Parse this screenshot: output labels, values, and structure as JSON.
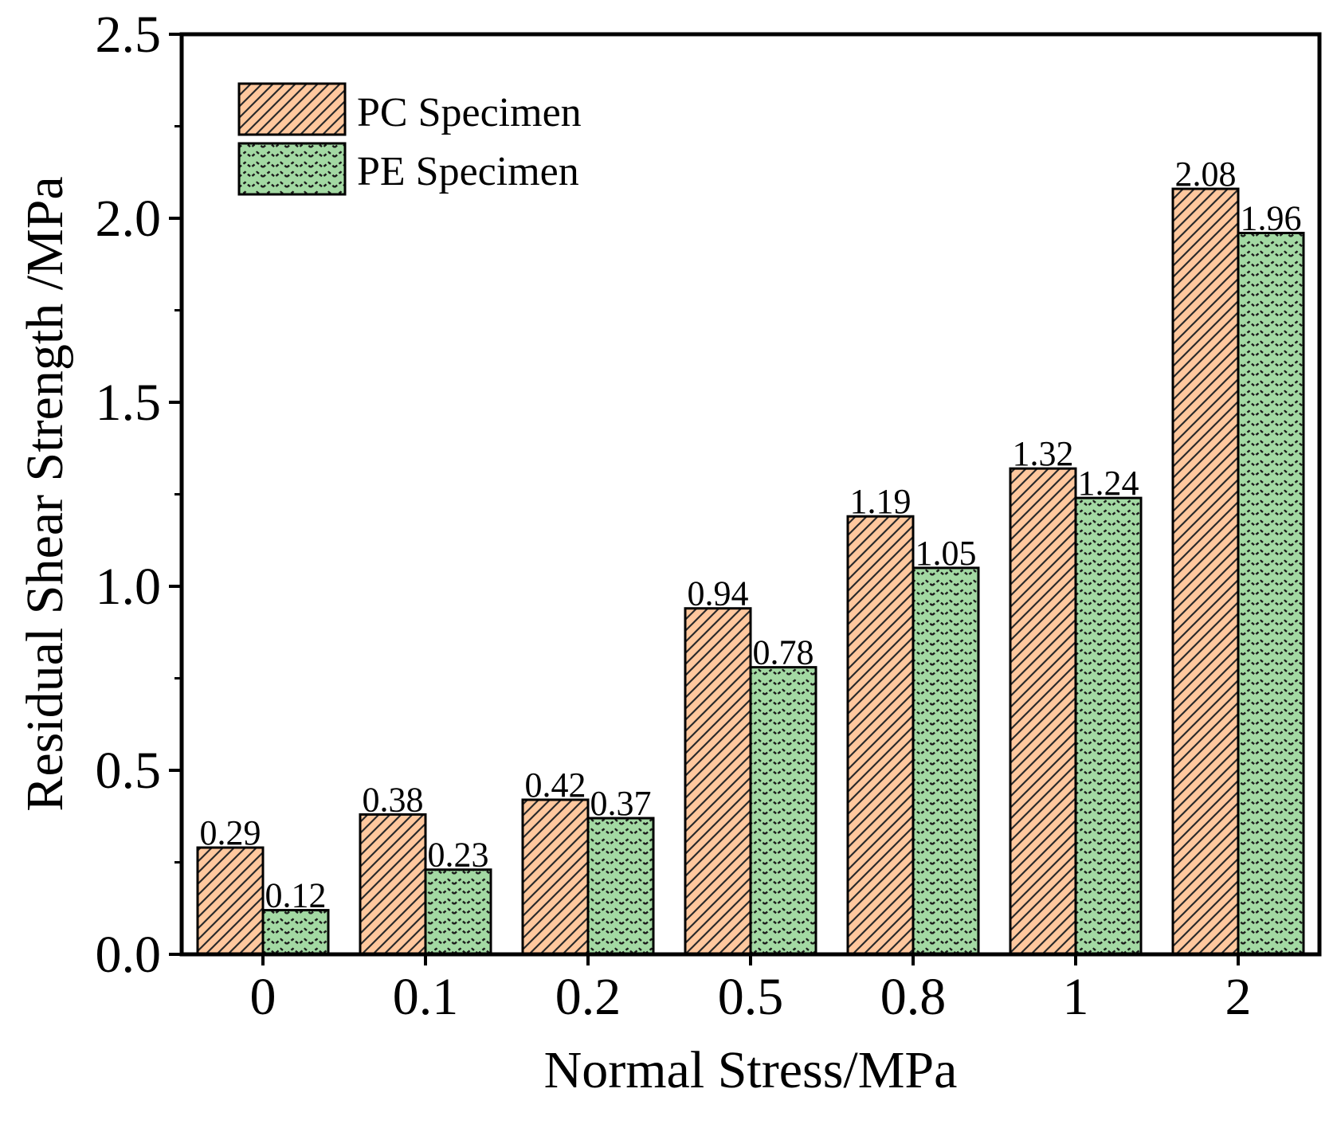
{
  "chart_data": {
    "type": "bar",
    "title": "",
    "xlabel": "Normal Stress/MPa",
    "ylabel": "Residual Shear Strength /MPa",
    "categories": [
      "0",
      "0.1",
      "0.2",
      "0.5",
      "0.8",
      "1",
      "2"
    ],
    "ylim": [
      0,
      2.5
    ],
    "yticks": [
      "0.0",
      "0.5",
      "1.0",
      "1.5",
      "2.0",
      "2.5"
    ],
    "grid": false,
    "legend_position": "top-left",
    "series": [
      {
        "name": "PC Specimen",
        "values": [
          0.29,
          0.38,
          0.42,
          0.94,
          1.19,
          1.32,
          2.08
        ],
        "labels": [
          "0.29",
          "0.38",
          "0.42",
          "0.94",
          "1.19",
          "1.32",
          "2.08"
        ],
        "color": "#FFC89E",
        "pattern": "diagonal-hatch"
      },
      {
        "name": "PE Specimen",
        "values": [
          0.12,
          0.23,
          0.37,
          0.78,
          1.05,
          1.24,
          1.96
        ],
        "labels": [
          "0.12",
          "0.23",
          "0.37",
          "0.78",
          "1.05",
          "1.24",
          "1.96"
        ],
        "color": "#A3D9A3",
        "pattern": "zigzag"
      }
    ]
  }
}
